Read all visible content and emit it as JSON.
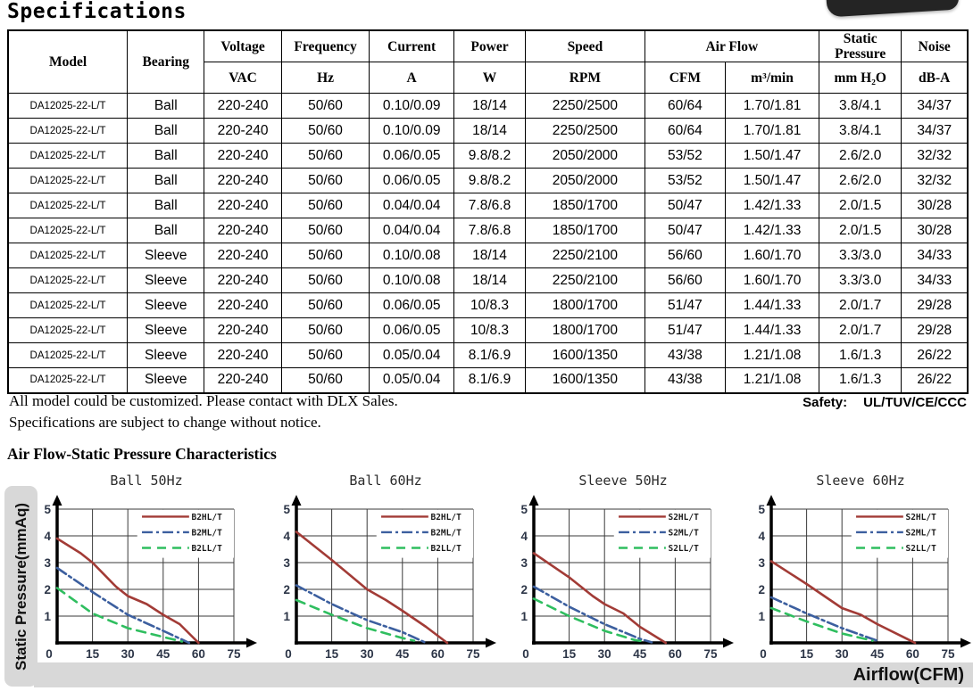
{
  "page": {
    "title": "Specifications",
    "note_line1": "All model could be customized. Please contact with DLX Sales.",
    "note_line2": "Specifications are subject to change without notice.",
    "safety_label": "Safety:",
    "safety_value": "UL/TUV/CE/CCC",
    "section_heading": "Air Flow-Static Pressure Characteristics"
  },
  "spec_table": {
    "header": {
      "model": "Model",
      "bearing": "Bearing",
      "voltage": "Voltage",
      "voltage_unit": "VAC",
      "frequency": "Frequency",
      "frequency_unit": "Hz",
      "current": "Current",
      "current_unit": "A",
      "power": "Power",
      "power_unit": "W",
      "speed": "Speed",
      "speed_unit": "RPM",
      "air_flow": "Air Flow",
      "air_flow_unit1": "CFM",
      "air_flow_unit2": "m³/min",
      "static_pressure": "Static Pressure",
      "static_pressure_unit": "mm H₂O",
      "noise": "Noise",
      "noise_unit": "dB-A"
    },
    "rows": [
      [
        "DA12025-22-L/T",
        "Ball",
        "220-240",
        "50/60",
        "0.10/0.09",
        "18/14",
        "2250/2500",
        "60/64",
        "1.70/1.81",
        "3.8/4.1",
        "34/37"
      ],
      [
        "DA12025-22-L/T",
        "Ball",
        "220-240",
        "50/60",
        "0.10/0.09",
        "18/14",
        "2250/2500",
        "60/64",
        "1.70/1.81",
        "3.8/4.1",
        "34/37"
      ],
      [
        "DA12025-22-L/T",
        "Ball",
        "220-240",
        "50/60",
        "0.06/0.05",
        "9.8/8.2",
        "2050/2000",
        "53/52",
        "1.50/1.47",
        "2.6/2.0",
        "32/32"
      ],
      [
        "DA12025-22-L/T",
        "Ball",
        "220-240",
        "50/60",
        "0.06/0.05",
        "9.8/8.2",
        "2050/2000",
        "53/52",
        "1.50/1.47",
        "2.6/2.0",
        "32/32"
      ],
      [
        "DA12025-22-L/T",
        "Ball",
        "220-240",
        "50/60",
        "0.04/0.04",
        "7.8/6.8",
        "1850/1700",
        "50/47",
        "1.42/1.33",
        "2.0/1.5",
        "30/28"
      ],
      [
        "DA12025-22-L/T",
        "Ball",
        "220-240",
        "50/60",
        "0.04/0.04",
        "7.8/6.8",
        "1850/1700",
        "50/47",
        "1.42/1.33",
        "2.0/1.5",
        "30/28"
      ],
      [
        "DA12025-22-L/T",
        "Sleeve",
        "220-240",
        "50/60",
        "0.10/0.08",
        "18/14",
        "2250/2100",
        "56/60",
        "1.60/1.70",
        "3.3/3.0",
        "34/33"
      ],
      [
        "DA12025-22-L/T",
        "Sleeve",
        "220-240",
        "50/60",
        "0.10/0.08",
        "18/14",
        "2250/2100",
        "56/60",
        "1.60/1.70",
        "3.3/3.0",
        "34/33"
      ],
      [
        "DA12025-22-L/T",
        "Sleeve",
        "220-240",
        "50/60",
        "0.06/0.05",
        "10/8.3",
        "1800/1700",
        "51/47",
        "1.44/1.33",
        "2.0/1.7",
        "29/28"
      ],
      [
        "DA12025-22-L/T",
        "Sleeve",
        "220-240",
        "50/60",
        "0.06/0.05",
        "10/8.3",
        "1800/1700",
        "51/47",
        "1.44/1.33",
        "2.0/1.7",
        "29/28"
      ],
      [
        "DA12025-22-L/T",
        "Sleeve",
        "220-240",
        "50/60",
        "0.05/0.04",
        "8.1/6.9",
        "1600/1350",
        "43/38",
        "1.21/1.08",
        "1.6/1.3",
        "26/22"
      ],
      [
        "DA12025-22-L/T",
        "Sleeve",
        "220-240",
        "50/60",
        "0.05/0.04",
        "8.1/6.9",
        "1600/1350",
        "43/38",
        "1.21/1.08",
        "1.6/1.3",
        "26/22"
      ]
    ]
  },
  "charts_shared": {
    "y_axis_label": "Static Pressure(mmAq)",
    "x_axis_label": "Airflow(CFM)"
  },
  "chart_data": [
    {
      "type": "line",
      "title": "Ball 50Hz",
      "xlabel": "Airflow(CFM)",
      "ylabel": "Static Pressure(mmAq)",
      "xlim": [
        0,
        75
      ],
      "ylim": [
        0,
        5
      ],
      "x_ticks": [
        0,
        15,
        30,
        45,
        60,
        75
      ],
      "y_ticks": [
        0,
        1,
        2,
        3,
        4,
        5
      ],
      "grid": true,
      "legend_position": "top-right",
      "series": [
        {
          "name": "B2HL/T",
          "color": "#A23B36",
          "style": "solid",
          "points": [
            [
              0,
              3.9
            ],
            [
              10,
              3.35
            ],
            [
              15,
              3.0
            ],
            [
              25,
              2.1
            ],
            [
              30,
              1.75
            ],
            [
              38,
              1.45
            ],
            [
              45,
              1.05
            ],
            [
              52,
              0.7
            ],
            [
              60,
              0
            ]
          ]
        },
        {
          "name": "B2ML/T",
          "color": "#3C5F9F",
          "style": "dashdot",
          "points": [
            [
              0,
              2.8
            ],
            [
              15,
              1.9
            ],
            [
              30,
              1.05
            ],
            [
              45,
              0.45
            ],
            [
              56,
              0
            ]
          ]
        },
        {
          "name": "B2LL/T",
          "color": "#2FBE5F",
          "style": "dashed",
          "points": [
            [
              0,
              2.05
            ],
            [
              15,
              1.1
            ],
            [
              30,
              0.55
            ],
            [
              45,
              0.22
            ],
            [
              53,
              0.05
            ]
          ]
        }
      ]
    },
    {
      "type": "line",
      "title": "Ball 60Hz",
      "xlabel": "Airflow(CFM)",
      "ylabel": "Static Pressure(mmAq)",
      "xlim": [
        0,
        75
      ],
      "ylim": [
        0,
        5
      ],
      "x_ticks": [
        0,
        15,
        30,
        45,
        60,
        75
      ],
      "y_ticks": [
        0,
        1,
        2,
        3,
        4,
        5
      ],
      "grid": true,
      "legend_position": "top-right",
      "series": [
        {
          "name": "B2HL/T",
          "color": "#A23B36",
          "style": "solid",
          "points": [
            [
              0,
              4.15
            ],
            [
              15,
              3.1
            ],
            [
              30,
              2.0
            ],
            [
              38,
              1.6
            ],
            [
              45,
              1.2
            ],
            [
              55,
              0.6
            ],
            [
              64,
              0
            ]
          ]
        },
        {
          "name": "B2ML/T",
          "color": "#3C5F9F",
          "style": "dashdot",
          "points": [
            [
              0,
              2.15
            ],
            [
              15,
              1.45
            ],
            [
              30,
              0.85
            ],
            [
              45,
              0.4
            ],
            [
              55,
              0
            ]
          ]
        },
        {
          "name": "B2LL/T",
          "color": "#2FBE5F",
          "style": "dashed",
          "points": [
            [
              0,
              1.6
            ],
            [
              15,
              1.05
            ],
            [
              30,
              0.55
            ],
            [
              45,
              0.18
            ],
            [
              50,
              0.08
            ]
          ]
        }
      ]
    },
    {
      "type": "line",
      "title": "Sleeve 50Hz",
      "xlabel": "Airflow(CFM)",
      "ylabel": "Static Pressure(mmAq)",
      "xlim": [
        0,
        75
      ],
      "ylim": [
        0,
        5
      ],
      "x_ticks": [
        0,
        15,
        30,
        45,
        60,
        75
      ],
      "y_ticks": [
        0,
        1,
        2,
        3,
        4,
        5
      ],
      "grid": true,
      "legend_position": "top-right",
      "series": [
        {
          "name": "S2HL/T",
          "color": "#A23B36",
          "style": "solid",
          "points": [
            [
              0,
              3.35
            ],
            [
              15,
              2.45
            ],
            [
              25,
              1.75
            ],
            [
              30,
              1.45
            ],
            [
              38,
              1.1
            ],
            [
              45,
              0.6
            ],
            [
              56,
              0
            ]
          ]
        },
        {
          "name": "S2ML/T",
          "color": "#3C5F9F",
          "style": "dashdot",
          "points": [
            [
              0,
              2.1
            ],
            [
              15,
              1.35
            ],
            [
              30,
              0.7
            ],
            [
              45,
              0.15
            ],
            [
              50,
              0.02
            ]
          ]
        },
        {
          "name": "S2LL/T",
          "color": "#2FBE5F",
          "style": "dashed",
          "points": [
            [
              0,
              1.65
            ],
            [
              15,
              1.0
            ],
            [
              30,
              0.45
            ],
            [
              43,
              0.1
            ],
            [
              47,
              0.05
            ]
          ]
        }
      ]
    },
    {
      "type": "line",
      "title": "Sleeve 60Hz",
      "xlabel": "Airflow(CFM)",
      "ylabel": "Static Pressure(mmAq)",
      "xlim": [
        0,
        75
      ],
      "ylim": [
        0,
        5
      ],
      "x_ticks": [
        0,
        15,
        30,
        45,
        60,
        75
      ],
      "y_ticks": [
        0,
        1,
        2,
        3,
        4,
        5
      ],
      "grid": true,
      "legend_position": "top-right",
      "series": [
        {
          "name": "S2HL/T",
          "color": "#A23B36",
          "style": "solid",
          "points": [
            [
              0,
              3.05
            ],
            [
              15,
              2.2
            ],
            [
              30,
              1.3
            ],
            [
              38,
              1.05
            ],
            [
              45,
              0.7
            ],
            [
              61,
              0
            ]
          ]
        },
        {
          "name": "S2ML/T",
          "color": "#3C5F9F",
          "style": "dashdot",
          "points": [
            [
              0,
              1.7
            ],
            [
              15,
              1.1
            ],
            [
              30,
              0.55
            ],
            [
              45,
              0.08
            ]
          ]
        },
        {
          "name": "S2LL/T",
          "color": "#2FBE5F",
          "style": "dashed",
          "points": [
            [
              0,
              1.3
            ],
            [
              15,
              0.8
            ],
            [
              30,
              0.35
            ],
            [
              43,
              0.08
            ]
          ]
        }
      ]
    }
  ]
}
